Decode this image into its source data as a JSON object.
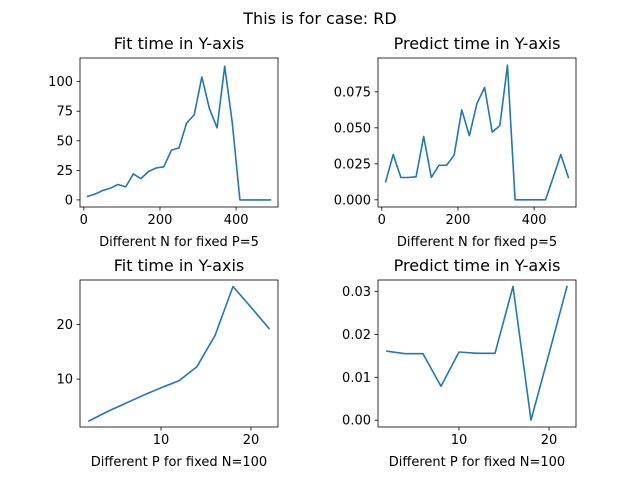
{
  "figure": {
    "suptitle": "This is for case: RD"
  },
  "colors": {
    "series": "#1f77b4"
  },
  "chart_data": [
    {
      "type": "line",
      "title": "Fit time in Y-axis",
      "xlabel": "Different N for fixed P=5",
      "ylabel": "",
      "xlim": [
        -10,
        510
      ],
      "ylim": [
        -6,
        120
      ],
      "xticks": [
        0,
        200,
        400
      ],
      "yticks": [
        0,
        25,
        50,
        75,
        100
      ],
      "x": [
        10,
        30,
        50,
        70,
        90,
        110,
        130,
        150,
        170,
        190,
        210,
        230,
        250,
        270,
        290,
        310,
        330,
        350,
        370,
        390,
        410,
        430,
        450,
        470,
        490
      ],
      "y": [
        3,
        5,
        8,
        10,
        13,
        11,
        22,
        18,
        24,
        27,
        28,
        42,
        44,
        65,
        72,
        104,
        77,
        61,
        113,
        65,
        0,
        0,
        0,
        0,
        0
      ]
    },
    {
      "type": "line",
      "title": "Predict time in Y-axis",
      "xlabel": "Different N for fixed p=5",
      "ylabel": "",
      "xlim": [
        -10,
        510
      ],
      "ylim": [
        -0.005,
        0.0985
      ],
      "xticks": [
        0,
        200,
        400
      ],
      "yticks": [
        0.0,
        0.025,
        0.05,
        0.075
      ],
      "ytick_labels": [
        "0.000",
        "0.025",
        "0.050",
        "0.075"
      ],
      "x": [
        10,
        30,
        50,
        70,
        90,
        110,
        130,
        150,
        170,
        190,
        210,
        230,
        250,
        270,
        290,
        310,
        330,
        350,
        370,
        390,
        410,
        430,
        450,
        470,
        490
      ],
      "y": [
        0.0125,
        0.0315,
        0.0155,
        0.0155,
        0.016,
        0.044,
        0.0155,
        0.024,
        0.024,
        0.031,
        0.0625,
        0.0445,
        0.067,
        0.078,
        0.047,
        0.0515,
        0.0935,
        0.0,
        0.0,
        0.0,
        0.0,
        0.0,
        0.0155,
        0.0315,
        0.0155
      ]
    },
    {
      "type": "line",
      "title": "Fit time in Y-axis",
      "xlabel": "Different P for fixed N=100",
      "ylabel": "",
      "xlim": [
        1,
        23
      ],
      "ylim": [
        1.2,
        28.2
      ],
      "xticks": [
        10,
        20
      ],
      "yticks": [
        10,
        20
      ],
      "x": [
        2,
        4,
        6,
        8,
        10,
        12,
        14,
        16,
        18,
        20,
        22
      ],
      "y": [
        2.3,
        4.0,
        5.5,
        7.0,
        8.4,
        9.7,
        12.3,
        18.0,
        27.0,
        23.2,
        19.3
      ]
    },
    {
      "type": "line",
      "title": "Predict time in Y-axis",
      "xlabel": "Different P for fixed N=100",
      "ylabel": "",
      "xlim": [
        1,
        23
      ],
      "ylim": [
        -0.0016,
        0.0327
      ],
      "xticks": [
        10,
        20
      ],
      "yticks": [
        0.0,
        0.01,
        0.02,
        0.03
      ],
      "ytick_labels": [
        "0.00",
        "0.01",
        "0.02",
        "0.03"
      ],
      "x": [
        2,
        4,
        6,
        8,
        10,
        12,
        14,
        16,
        18,
        20,
        22
      ],
      "y": [
        0.0161,
        0.0155,
        0.0155,
        0.0079,
        0.0159,
        0.0156,
        0.0156,
        0.0312,
        0.0,
        0.0155,
        0.0312
      ]
    }
  ]
}
